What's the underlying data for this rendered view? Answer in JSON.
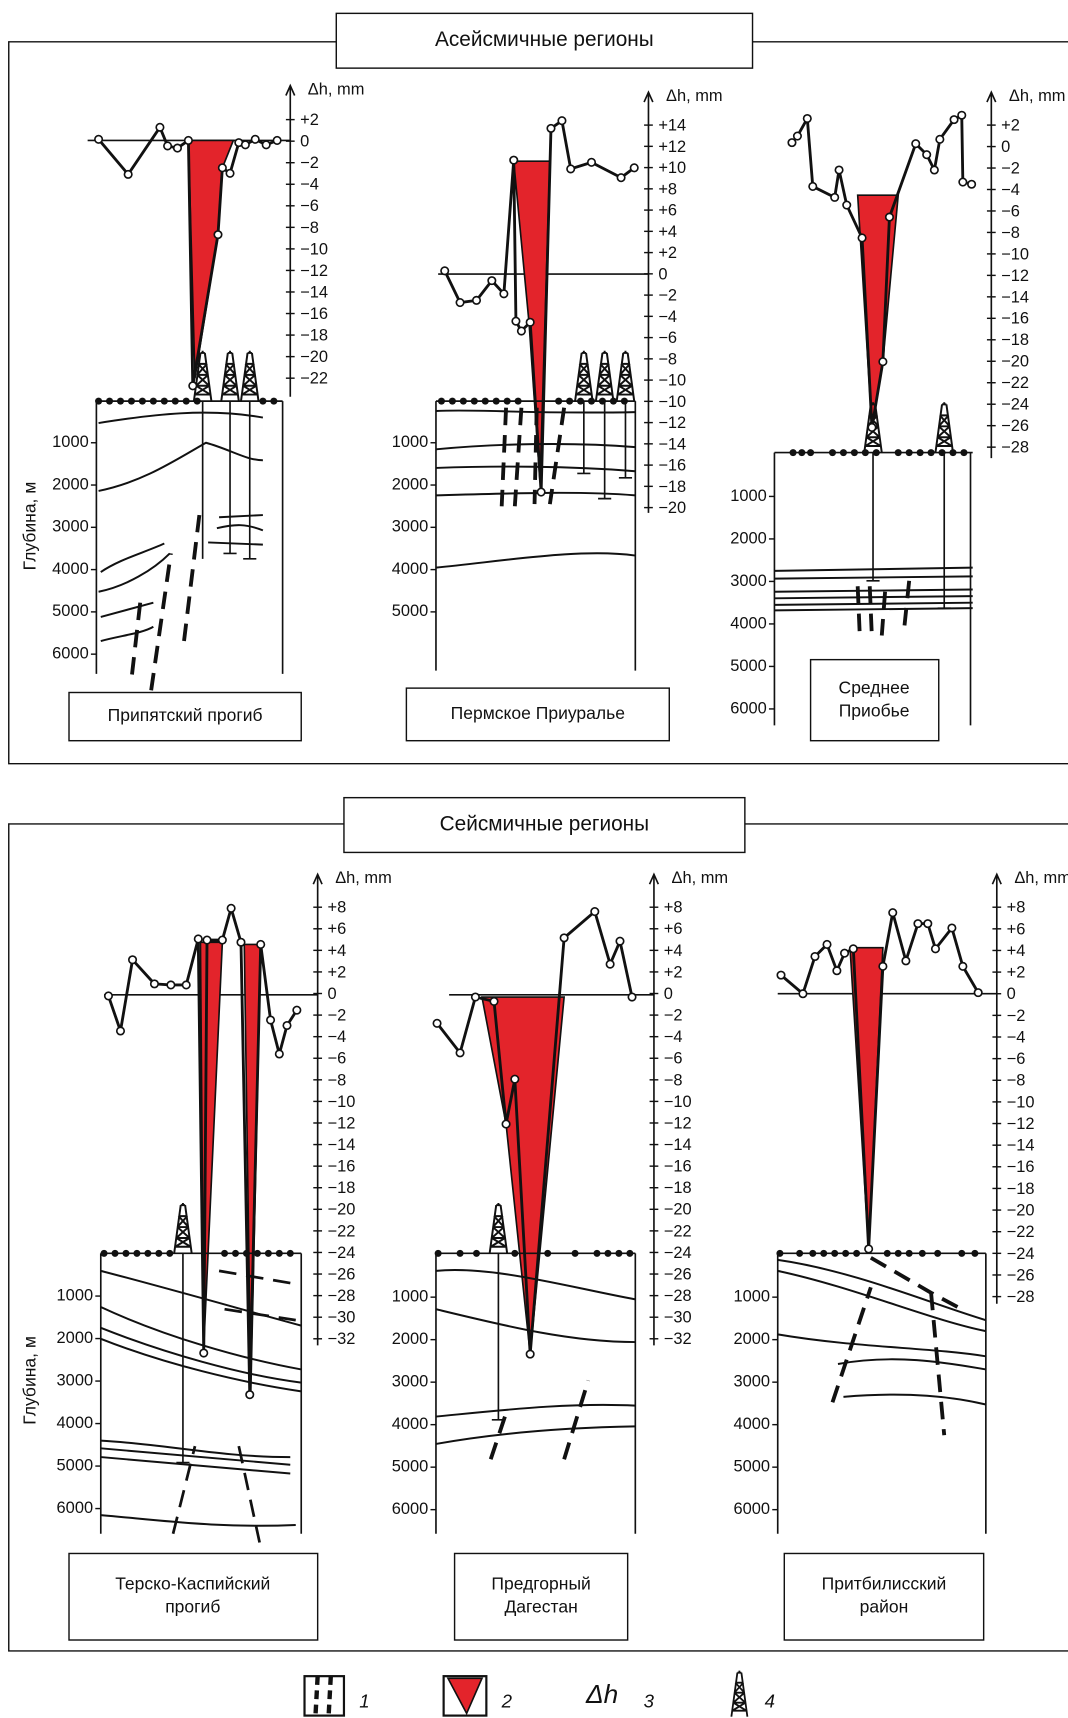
{
  "sections": [
    {
      "title": "Асейсмичные регионы",
      "depth_label": "Глубина, м",
      "panels": [
        {
          "name_lines": [
            "Припятский прогиб"
          ],
          "dh_label": "Δh, mm",
          "dh_ticks": [
            "+2",
            "0",
            "−2",
            "−4",
            "−6",
            "−8",
            "−10",
            "−12",
            "−14",
            "−16",
            "−18",
            "−20",
            "−22"
          ],
          "depth_ticks": [
            "1000",
            "2000",
            "3000",
            "4000",
            "5000",
            "6000"
          ]
        },
        {
          "name_lines": [
            "Пермское Приуралье"
          ],
          "dh_label": "Δh, mm",
          "dh_ticks": [
            "+14",
            "+12",
            "+10",
            "+8",
            "+6",
            "+4",
            "+2",
            "0",
            "−2",
            "−4",
            "−6",
            "−8",
            "−10",
            "−10",
            "−12",
            "−14",
            "−16",
            "−18",
            "−20"
          ],
          "depth_ticks": [
            "1000",
            "2000",
            "3000",
            "4000",
            "5000"
          ]
        },
        {
          "name_lines": [
            "Среднее",
            "Приобье"
          ],
          "dh_label": "Δh, mm",
          "dh_ticks": [
            "+2",
            "0",
            "−2",
            "−4",
            "−6",
            "−8",
            "−10",
            "−12",
            "−14",
            "−16",
            "−18",
            "−20",
            "−22",
            "−24",
            "−26",
            "−28"
          ],
          "depth_ticks": [
            "1000",
            "2000",
            "3000",
            "4000",
            "5000",
            "6000"
          ]
        }
      ]
    },
    {
      "title": "Сейсмичные регионы",
      "depth_label": "Глубина, м",
      "panels": [
        {
          "name_lines": [
            "Терско-Каспийский",
            "прогиб"
          ],
          "dh_label": "Δh, mm",
          "dh_ticks": [
            "+8",
            "+6",
            "+4",
            "+2",
            "0",
            "−2",
            "−4",
            "−6",
            "−8",
            "−10",
            "−12",
            "−14",
            "−16",
            "−18",
            "−20",
            "−22",
            "−24",
            "−26",
            "−28",
            "−30",
            "−32"
          ],
          "depth_ticks": [
            "1000",
            "2000",
            "3000",
            "4000",
            "5000",
            "6000"
          ]
        },
        {
          "name_lines": [
            "Предгорный",
            "Дагестан"
          ],
          "dh_label": "Δh, mm",
          "dh_ticks": [
            "+8",
            "+6",
            "+4",
            "+2",
            "0",
            "−2",
            "−4",
            "−6",
            "−8",
            "−10",
            "−12",
            "−14",
            "−16",
            "−18",
            "−20",
            "−22",
            "−24",
            "−26",
            "−28",
            "−30",
            "−32"
          ],
          "depth_ticks": [
            "1000",
            "2000",
            "3000",
            "4000",
            "5000",
            "6000"
          ]
        },
        {
          "name_lines": [
            "Притбилисский",
            "район"
          ],
          "dh_label": "Δh, mm",
          "dh_ticks": [
            "+8",
            "+6",
            "+4",
            "+2",
            "0",
            "−2",
            "−4",
            "−6",
            "−8",
            "−10",
            "−12",
            "−14",
            "−16",
            "−18",
            "−20",
            "−22",
            "−24",
            "−26",
            "−28"
          ],
          "depth_ticks": [
            "1000",
            "2000",
            "3000",
            "4000",
            "5000",
            "6000"
          ]
        }
      ]
    }
  ],
  "legend": [
    {
      "number": "1"
    },
    {
      "number": "2"
    },
    {
      "label": "Δh",
      "number": "3"
    },
    {
      "number": "4"
    }
  ]
}
